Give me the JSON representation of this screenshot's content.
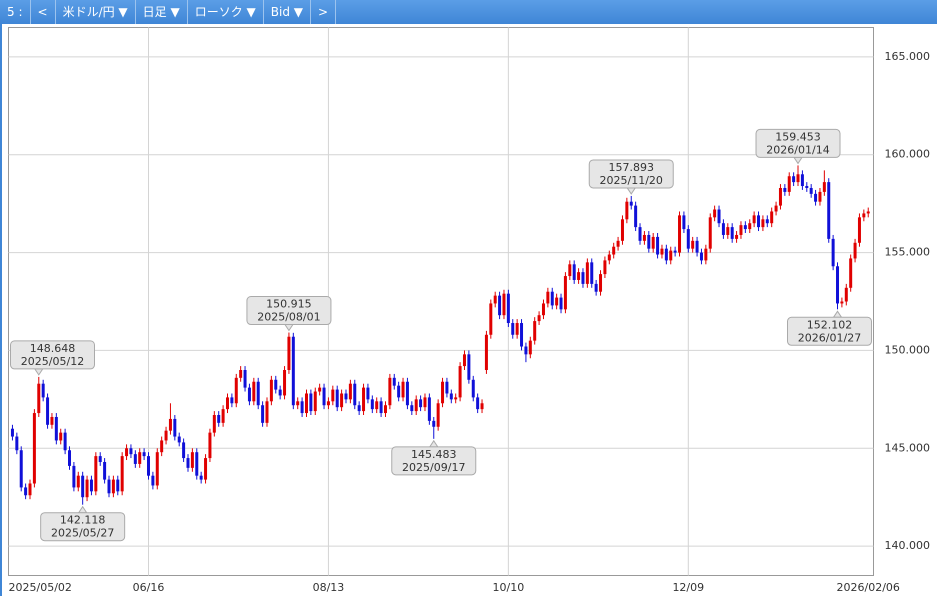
{
  "toolbar": {
    "items": [
      "5 :",
      "<",
      "米ドル/円 ▼",
      "日足 ▼",
      "ローソク ▼",
      "Bid ▼",
      ">"
    ]
  },
  "chart_data": {
    "type": "candlestick",
    "up_color": "#e00000",
    "down_color": "#1010d8",
    "grid": true,
    "xlim": [
      -0.9,
      196.2
    ],
    "ylim": [
      138.5,
      166.5
    ],
    "xticks": [
      {
        "value": 0,
        "label": "2025/05/02"
      },
      {
        "value": 31,
        "label": "06/16"
      },
      {
        "value": 72,
        "label": "08/13"
      },
      {
        "value": 113,
        "label": "10/10"
      },
      {
        "value": 154,
        "label": "12/09"
      },
      {
        "value": 195,
        "label": "2026/02/06"
      }
    ],
    "yticks": [
      {
        "value": 140,
        "label": "140.000"
      },
      {
        "value": 145,
        "label": "145.000"
      },
      {
        "value": 150,
        "label": "150.000"
      },
      {
        "value": 155,
        "label": "155.000"
      },
      {
        "value": 160,
        "label": "160.000"
      },
      {
        "value": 165,
        "label": "165.000"
      }
    ],
    "open": [
      146.0,
      145.6,
      144.9,
      143.0,
      142.6,
      143.2,
      146.8,
      148.3,
      147.6,
      146.2,
      146.6,
      145.4,
      145.8,
      144.9,
      144.1,
      143.0,
      143.6,
      142.5,
      143.4,
      142.8,
      144.6,
      144.3,
      143.4,
      142.7,
      143.4,
      142.8,
      144.6,
      145.0,
      144.7,
      144.2,
      144.8,
      144.6,
      143.6,
      143.1,
      144.8,
      145.4,
      145.9,
      146.5,
      145.6,
      145.3,
      144.5,
      144.0,
      144.8,
      143.6,
      143.4,
      144.5,
      145.8,
      146.7,
      146.3,
      147.0,
      147.6,
      147.3,
      148.6,
      149.0,
      148.1,
      147.4,
      148.4,
      147.2,
      146.3,
      147.4,
      148.5,
      148.0,
      147.7,
      149.0,
      150.7,
      147.2,
      147.4,
      146.8,
      147.8,
      146.9,
      147.9,
      148.1,
      147.2,
      147.4,
      148.0,
      147.1,
      147.8,
      147.5,
      148.3,
      147.2,
      146.9,
      148.1,
      147.5,
      147.0,
      147.4,
      146.8,
      147.2,
      148.6,
      148.2,
      147.6,
      148.4,
      147.2,
      146.9,
      147.5,
      147.1,
      147.6,
      146.4,
      146.1,
      147.3,
      148.4,
      147.8,
      147.5,
      147.6,
      149.2,
      149.8,
      148.5,
      147.6,
      147.0,
      149.0,
      150.8,
      152.4,
      152.8,
      151.8,
      152.9,
      151.4,
      150.8,
      151.4,
      150.2,
      149.8,
      150.5,
      151.5,
      151.8,
      152.4,
      153.0,
      152.3,
      152.7,
      152.1,
      153.8,
      154.4,
      153.6,
      154.0,
      153.4,
      154.5,
      153.4,
      153.0,
      153.9,
      154.6,
      154.9,
      155.3,
      155.6,
      156.7,
      157.6,
      157.4,
      156.3,
      155.6,
      155.9,
      155.2,
      155.8,
      154.9,
      155.2,
      154.6,
      155.1,
      155.0,
      156.9,
      156.2,
      155.2,
      155.6,
      155.0,
      154.6,
      155.2,
      156.8,
      157.2,
      156.5,
      155.9,
      156.3,
      155.7,
      155.9,
      156.4,
      156.2,
      156.5,
      156.9,
      156.3,
      156.7,
      156.5,
      157.1,
      157.4,
      158.3,
      158.1,
      158.9,
      158.6,
      159.0,
      158.4,
      158.3,
      158.0,
      157.6,
      158.1,
      158.6,
      155.7,
      154.3,
      152.4,
      152.5,
      153.2,
      154.7,
      155.5,
      156.8,
      157.0
    ],
    "high": [
      146.2,
      145.8,
      145.1,
      143.2,
      143.4,
      147.0,
      148.648,
      148.5,
      147.8,
      146.8,
      146.8,
      146.0,
      146.0,
      145.1,
      144.3,
      143.8,
      143.8,
      143.6,
      143.6,
      144.8,
      144.8,
      144.5,
      143.6,
      143.6,
      143.6,
      144.8,
      145.2,
      145.2,
      144.9,
      145.0,
      145.0,
      144.8,
      143.8,
      145.0,
      145.6,
      146.1,
      147.3,
      146.7,
      145.8,
      145.5,
      144.7,
      145.0,
      145.0,
      143.8,
      144.7,
      146.0,
      146.9,
      146.9,
      147.2,
      147.8,
      147.8,
      148.8,
      149.2,
      149.2,
      148.3,
      148.6,
      148.6,
      147.4,
      147.6,
      148.7,
      148.7,
      148.2,
      149.2,
      150.915,
      150.9,
      147.6,
      147.6,
      148.0,
      148.0,
      148.1,
      148.3,
      148.3,
      147.6,
      148.2,
      148.2,
      148.0,
      148.0,
      148.5,
      148.5,
      147.4,
      148.3,
      148.3,
      147.7,
      147.6,
      147.6,
      147.4,
      148.8,
      148.8,
      148.4,
      148.6,
      148.6,
      147.4,
      147.7,
      147.7,
      147.8,
      147.8,
      146.6,
      147.5,
      148.6,
      148.6,
      148.0,
      147.8,
      149.4,
      150.0,
      150.0,
      148.7,
      147.8,
      147.5,
      151.0,
      152.6,
      153.0,
      153.0,
      153.1,
      153.1,
      151.6,
      151.6,
      151.6,
      150.4,
      150.7,
      151.7,
      152.0,
      152.6,
      153.2,
      153.2,
      152.9,
      152.9,
      154.0,
      154.6,
      154.6,
      154.2,
      154.2,
      154.7,
      154.7,
      153.6,
      154.1,
      154.8,
      155.1,
      155.5,
      155.8,
      156.9,
      157.8,
      157.893,
      157.6,
      156.5,
      156.1,
      156.1,
      156.0,
      156.0,
      155.4,
      155.4,
      155.3,
      155.3,
      157.1,
      157.1,
      156.4,
      155.8,
      155.8,
      155.2,
      155.4,
      157.0,
      157.4,
      157.4,
      156.7,
      156.5,
      156.5,
      156.1,
      156.6,
      156.6,
      156.7,
      157.1,
      157.1,
      156.9,
      156.9,
      157.3,
      157.6,
      158.5,
      158.5,
      159.1,
      159.1,
      159.453,
      159.2,
      158.6,
      158.5,
      158.2,
      158.3,
      159.2,
      158.8,
      155.9,
      154.5,
      152.7,
      153.4,
      154.9,
      155.7,
      157.0,
      157.2,
      157.3
    ],
    "low": [
      145.4,
      144.7,
      142.8,
      142.4,
      142.4,
      143.0,
      146.6,
      147.4,
      146.0,
      146.0,
      145.2,
      145.2,
      144.7,
      143.9,
      142.8,
      142.8,
      142.118,
      142.3,
      142.6,
      142.6,
      144.1,
      143.2,
      142.5,
      142.5,
      142.6,
      142.6,
      144.4,
      144.5,
      144.0,
      144.0,
      144.4,
      143.4,
      142.9,
      142.9,
      144.6,
      145.2,
      145.7,
      145.4,
      145.1,
      144.3,
      143.8,
      143.8,
      143.4,
      143.2,
      143.2,
      144.3,
      145.6,
      146.1,
      146.1,
      146.8,
      147.1,
      147.1,
      148.4,
      147.9,
      147.2,
      147.2,
      147.0,
      146.1,
      146.1,
      147.2,
      147.8,
      147.5,
      147.5,
      148.8,
      147.0,
      147.0,
      146.6,
      146.6,
      146.7,
      146.7,
      147.7,
      147.0,
      147.0,
      147.2,
      146.9,
      146.9,
      147.3,
      147.3,
      147.0,
      146.7,
      146.7,
      147.3,
      146.8,
      146.8,
      146.6,
      146.6,
      147.0,
      148.0,
      147.4,
      147.4,
      147.0,
      146.7,
      146.7,
      146.9,
      146.9,
      146.2,
      145.483,
      145.9,
      147.1,
      147.6,
      147.3,
      147.3,
      147.4,
      149.0,
      148.3,
      147.4,
      146.8,
      146.8,
      148.8,
      150.6,
      152.2,
      151.6,
      151.6,
      151.2,
      150.6,
      150.6,
      150.0,
      149.4,
      149.6,
      150.3,
      151.3,
      151.6,
      152.2,
      152.1,
      152.1,
      151.9,
      151.9,
      153.6,
      153.4,
      153.4,
      153.2,
      153.2,
      153.2,
      152.8,
      152.8,
      153.7,
      154.4,
      154.7,
      155.1,
      155.4,
      156.5,
      157.2,
      156.1,
      155.4,
      155.4,
      155.0,
      155.0,
      154.7,
      154.7,
      154.4,
      154.4,
      154.8,
      154.8,
      156.0,
      155.0,
      155.0,
      154.8,
      154.4,
      154.4,
      155.0,
      156.6,
      156.3,
      155.7,
      155.7,
      155.5,
      155.5,
      155.7,
      156.0,
      156.0,
      156.3,
      156.1,
      156.1,
      156.3,
      156.3,
      156.9,
      157.2,
      157.9,
      157.9,
      158.4,
      158.4,
      158.2,
      158.1,
      157.8,
      157.4,
      157.4,
      157.9,
      155.5,
      154.1,
      152.102,
      152.2,
      152.3,
      153.0,
      154.5,
      155.3,
      156.6,
      156.8
    ],
    "close": [
      145.6,
      144.9,
      143.0,
      142.6,
      143.2,
      146.8,
      148.3,
      147.6,
      146.2,
      146.6,
      145.4,
      145.8,
      144.9,
      144.1,
      143.0,
      143.6,
      142.5,
      143.4,
      142.8,
      144.6,
      144.3,
      143.4,
      142.7,
      143.4,
      142.8,
      144.6,
      145.0,
      144.7,
      144.2,
      144.8,
      144.6,
      143.6,
      143.1,
      144.8,
      145.4,
      145.9,
      146.5,
      145.6,
      145.3,
      144.5,
      144.0,
      144.8,
      143.6,
      143.4,
      144.5,
      145.8,
      146.7,
      146.3,
      147.0,
      147.6,
      147.3,
      148.6,
      149.0,
      148.1,
      147.4,
      148.4,
      147.2,
      146.3,
      147.4,
      148.5,
      148.0,
      147.7,
      149.0,
      150.7,
      147.2,
      147.4,
      146.8,
      147.8,
      146.9,
      147.9,
      148.1,
      147.2,
      147.4,
      148.0,
      147.1,
      147.8,
      147.5,
      148.3,
      147.2,
      146.9,
      148.1,
      147.5,
      147.0,
      147.4,
      146.8,
      147.2,
      148.6,
      148.2,
      147.6,
      148.4,
      147.2,
      146.9,
      147.5,
      147.1,
      147.6,
      146.4,
      146.1,
      147.3,
      148.4,
      147.8,
      147.5,
      147.6,
      149.2,
      149.8,
      148.5,
      147.6,
      147.0,
      147.3,
      150.8,
      152.4,
      152.8,
      151.8,
      152.9,
      151.4,
      150.8,
      151.4,
      150.2,
      149.8,
      150.5,
      151.5,
      151.8,
      152.4,
      153.0,
      152.3,
      152.7,
      152.1,
      153.8,
      154.4,
      153.6,
      154.0,
      153.4,
      154.5,
      153.4,
      153.0,
      153.9,
      154.6,
      154.9,
      155.3,
      155.6,
      156.7,
      157.6,
      157.4,
      156.3,
      155.6,
      155.9,
      155.2,
      155.8,
      154.9,
      155.2,
      154.6,
      155.1,
      155.0,
      156.9,
      156.2,
      155.2,
      155.6,
      155.0,
      154.6,
      155.2,
      156.8,
      157.2,
      156.5,
      155.9,
      156.3,
      155.7,
      155.9,
      156.4,
      156.2,
      156.5,
      156.9,
      156.3,
      156.7,
      156.5,
      157.1,
      157.4,
      158.3,
      158.1,
      158.9,
      158.6,
      159.0,
      158.4,
      158.3,
      158.0,
      157.6,
      158.1,
      158.6,
      155.7,
      154.3,
      152.4,
      152.5,
      153.2,
      154.7,
      155.5,
      156.8,
      157.0,
      157.1
    ],
    "annotations": [
      {
        "x": 6,
        "value": 148.648,
        "label": "2025/05/12",
        "position": "above"
      },
      {
        "x": 16,
        "value": 142.118,
        "label": "2025/05/27",
        "position": "below"
      },
      {
        "x": 63,
        "value": 150.915,
        "label": "2025/08/01",
        "position": "above"
      },
      {
        "x": 96,
        "value": 145.483,
        "label": "2025/09/17",
        "position": "below"
      },
      {
        "x": 141,
        "value": 157.893,
        "label": "2025/11/20",
        "position": "above"
      },
      {
        "x": 179,
        "value": 159.453,
        "label": "2026/01/14",
        "position": "above"
      },
      {
        "x": 188,
        "value": 152.102,
        "label": "2026/01/27",
        "position": "below"
      }
    ]
  }
}
